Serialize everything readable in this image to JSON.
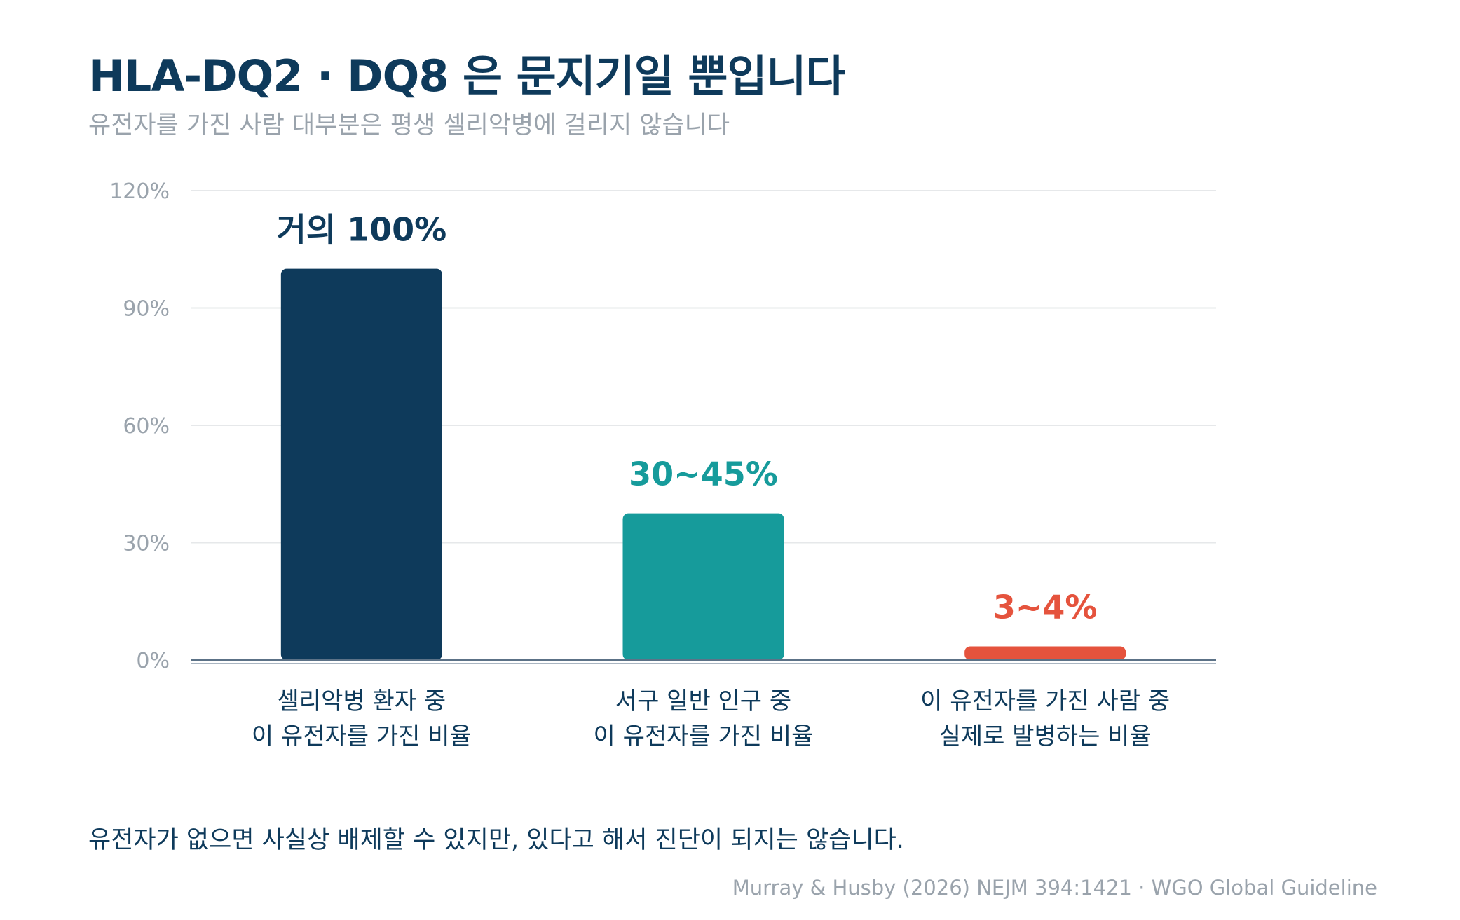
{
  "header": {
    "title": "HLA-DQ2 · DQ8 은 문지기일 뿐입니다",
    "subtitle": "유전자를 가진 사람 대부분은 평생 셀리악병에 걸리지 않습니다"
  },
  "chart_data": {
    "type": "bar",
    "title": "HLA-DQ2 · DQ8 은 문지기일 뿐입니다",
    "subtitle": "유전자를 가진 사람 대부분은 평생 셀리악병에 걸리지 않습니다",
    "categories": [
      [
        "셀리악병 환자 중",
        "이 유전자를 가진 비율"
      ],
      [
        "서구 일반 인구 중",
        "이 유전자를 가진 비율"
      ],
      [
        "이 유전자를 가진 사람 중",
        "실제로 발병하는 비율"
      ]
    ],
    "values": [
      100,
      37.5,
      3.5
    ],
    "value_labels": [
      "거의 100%",
      "30~45%",
      "3~4%"
    ],
    "colors": [
      "#0e3a5b",
      "#169b9b",
      "#e5533d"
    ],
    "ylim": [
      0,
      120
    ],
    "yticks": [
      0,
      30,
      60,
      90,
      120
    ],
    "ytick_labels": [
      "0%",
      "30%",
      "60%",
      "90%",
      "120%"
    ],
    "grid": true,
    "xlabel": "",
    "ylabel": ""
  },
  "footer": {
    "note": "유전자가 없으면 사실상 배제할 수 있지만, 있다고 해서 진단이 되지는 않습니다.",
    "source": "Murray & Husby (2026) NEJM 394:1421 · WGO Global Guideline"
  }
}
